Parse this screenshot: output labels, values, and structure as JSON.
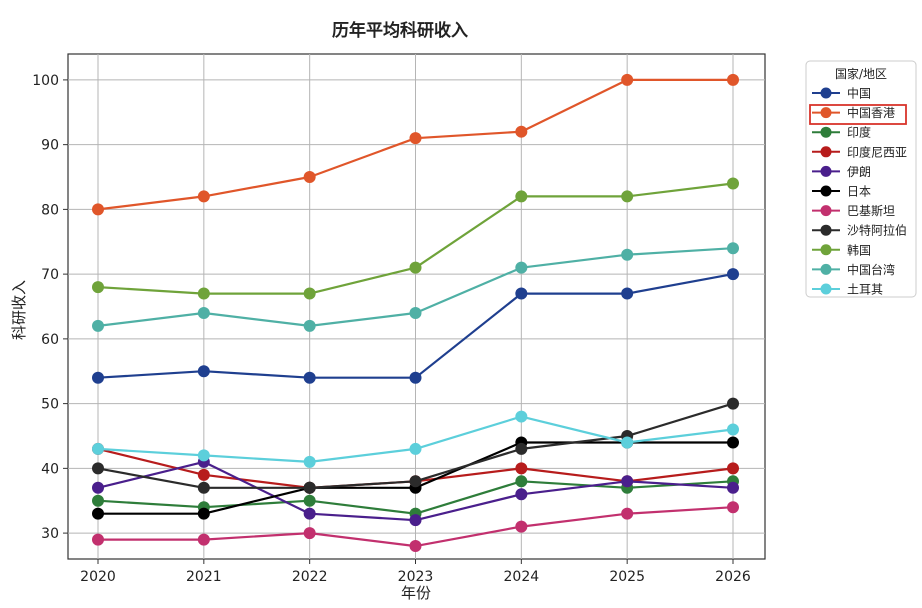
{
  "chart_data": {
    "type": "line",
    "title": "历年平均科研收入",
    "xlabel": "年份",
    "ylabel": "科研收入",
    "x": [
      2020,
      2021,
      2022,
      2023,
      2024,
      2025,
      2026
    ],
    "xticks": [
      "2020",
      "2021",
      "2022",
      "2023",
      "2024",
      "2025",
      "2026"
    ],
    "yticks": [
      "30",
      "40",
      "50",
      "60",
      "70",
      "80",
      "90",
      "100"
    ],
    "ylim": [
      26,
      104
    ],
    "grid": true,
    "legend": {
      "title": "国家/地区",
      "placement": "right",
      "highlighted": "中国香港"
    },
    "series": [
      {
        "name": "中国",
        "color": "#1f3f8f",
        "values": [
          54,
          55,
          54,
          54,
          67,
          67,
          70
        ]
      },
      {
        "name": "中国香港",
        "color": "#e0562a",
        "values": [
          80,
          82,
          85,
          91,
          92,
          100,
          100
        ]
      },
      {
        "name": "印度",
        "color": "#2e7d3a",
        "values": [
          35,
          34,
          35,
          33,
          38,
          37,
          38
        ]
      },
      {
        "name": "印度尼西亚",
        "color": "#b71c1c",
        "values": [
          43,
          39,
          37,
          38,
          40,
          38,
          40
        ]
      },
      {
        "name": "伊朗",
        "color": "#4a1f8c",
        "values": [
          37,
          41,
          33,
          32,
          36,
          38,
          37
        ]
      },
      {
        "name": "日本",
        "color": "#000000",
        "values": [
          33,
          33,
          37,
          37,
          44,
          44,
          44
        ]
      },
      {
        "name": "巴基斯坦",
        "color": "#c2306e",
        "values": [
          29,
          29,
          30,
          28,
          31,
          33,
          34
        ]
      },
      {
        "name": "沙特阿拉伯",
        "color": "#2b2b2b",
        "values": [
          40,
          37,
          37,
          38,
          43,
          45,
          50
        ]
      },
      {
        "name": "韩国",
        "color": "#6fa33a",
        "values": [
          68,
          67,
          67,
          71,
          82,
          82,
          84
        ]
      },
      {
        "name": "中国台湾",
        "color": "#4fb0a5",
        "values": [
          62,
          64,
          62,
          64,
          71,
          73,
          74
        ]
      },
      {
        "name": "土耳其",
        "color": "#5ccfdb",
        "values": [
          43,
          42,
          41,
          43,
          48,
          44,
          46
        ]
      }
    ]
  }
}
